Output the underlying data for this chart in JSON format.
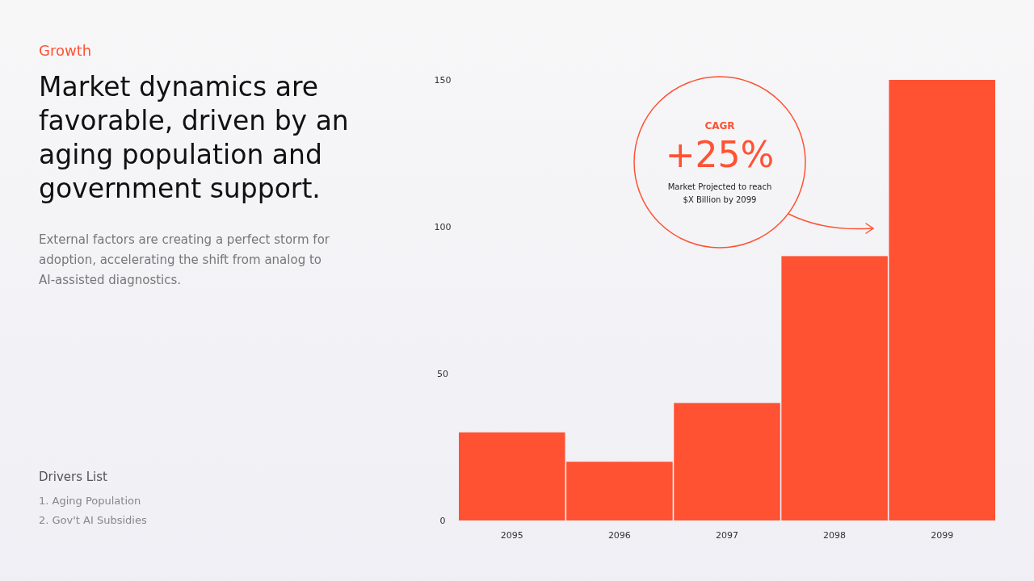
{
  "chart_data": {
    "type": "bar",
    "title": "Market dynamics are favorable, driven by an aging population and government support.",
    "subtitle": "External factors are creating a perfect storm for adoption, accelerating the shift from analog to AI-assisted diagnostics.",
    "categories": [
      "2095",
      "2096",
      "2097",
      "2098",
      "2099"
    ],
    "values": [
      30,
      20,
      40,
      90,
      150
    ],
    "color": "#ff5233",
    "ylim": [
      0,
      150
    ],
    "yticks": [
      0,
      50,
      100,
      150
    ],
    "grid": false,
    "annotations": [
      "Growth",
      "CAGR",
      "+25%",
      "Market Projected to reach",
      "$X Billion by 2099",
      "Drivers List",
      "1. Aging Population",
      "2. Gov't AI Subsidies"
    ]
  }
}
